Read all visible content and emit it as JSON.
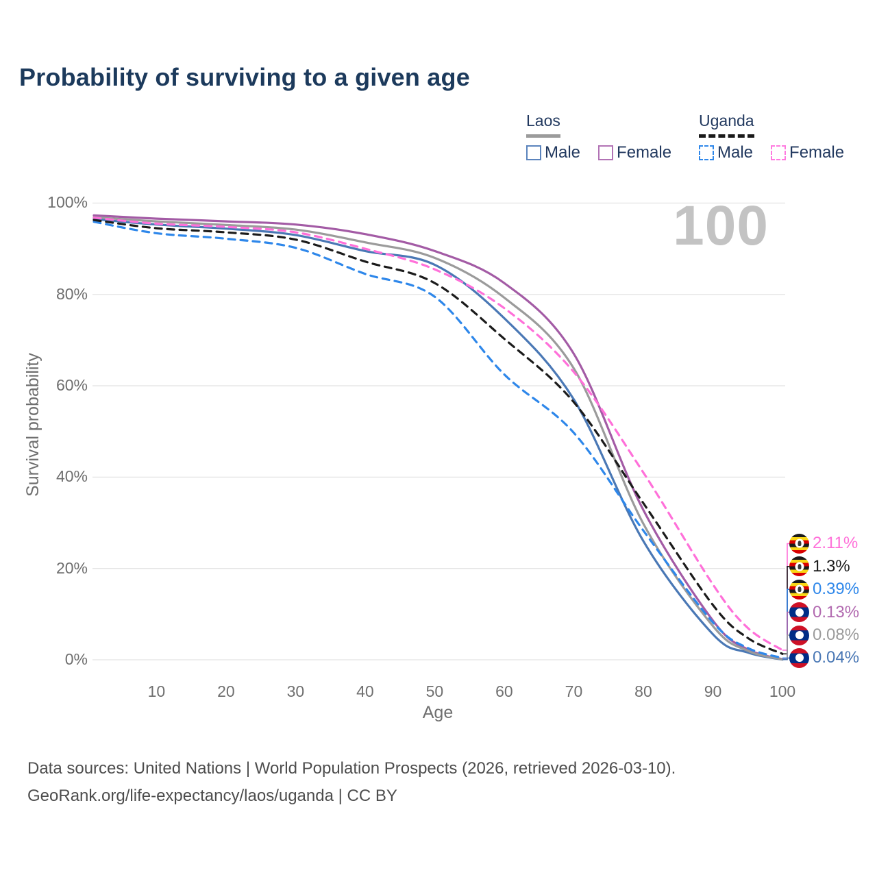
{
  "title": "Probability of surviving to a given age",
  "watermark": "100",
  "legend": {
    "groups": [
      {
        "name": "Laos",
        "line_style": "solid",
        "underline_color": "#9b9b9b",
        "items": [
          {
            "label": "Male",
            "color": "#5b84bd",
            "style": "solid"
          },
          {
            "label": "Female",
            "color": "#b273b5",
            "style": "solid"
          }
        ]
      },
      {
        "name": "Uganda",
        "line_style": "dashed",
        "underline_color": "#1a1a1a",
        "items": [
          {
            "label": "Male",
            "color": "#2e87ea",
            "style": "dashed"
          },
          {
            "label": "Female",
            "color": "#ff7be0",
            "style": "dashed"
          }
        ]
      }
    ]
  },
  "chart_data": {
    "type": "line",
    "title": "Probability of surviving to a given age",
    "xlabel": "Age",
    "ylabel": "Survival probability",
    "xlim": [
      1,
      100
    ],
    "ylim": [
      0,
      100
    ],
    "grid": "horizontal",
    "legend_position": "top-right",
    "x_ticks": [
      10,
      20,
      30,
      40,
      50,
      60,
      70,
      80,
      90,
      100
    ],
    "y_ticks": [
      "0%",
      "20%",
      "40%",
      "60%",
      "80%",
      "100%"
    ],
    "y_tick_values": [
      0,
      20,
      40,
      60,
      80,
      100
    ],
    "x": [
      1,
      10,
      20,
      30,
      40,
      50,
      60,
      70,
      80,
      90,
      95,
      100
    ],
    "series": [
      {
        "name": "Laos Male",
        "country": "Laos",
        "sex": "Male",
        "color": "#4a78b5",
        "dash": "solid",
        "values": [
          96.5,
          95.3,
          94.4,
          93.0,
          89.5,
          86.5,
          74.8,
          57.0,
          26.0,
          5.6,
          1.6,
          0.04
        ]
      },
      {
        "name": "Laos Female",
        "country": "Laos",
        "sex": "Female",
        "color": "#a35ba5",
        "dash": "solid",
        "values": [
          97.3,
          96.6,
          96.0,
          95.3,
          93.2,
          89.5,
          82.5,
          67.0,
          32.8,
          8.6,
          2.3,
          0.13
        ]
      },
      {
        "name": "Laos",
        "country": "Laos",
        "sex": "Both",
        "color": "#9b9b9b",
        "dash": "solid",
        "values": [
          96.9,
          96.0,
          95.2,
          94.2,
          91.4,
          88.0,
          79.3,
          63.8,
          29.8,
          7.4,
          2.0,
          0.08
        ]
      },
      {
        "name": "Uganda Male",
        "country": "Uganda",
        "sex": "Male",
        "color": "#2e87ea",
        "dash": "dashed",
        "values": [
          95.9,
          93.4,
          92.2,
          90.2,
          84.5,
          79.5,
          62.5,
          49.7,
          28.3,
          8.2,
          2.6,
          0.39
        ]
      },
      {
        "name": "Uganda",
        "country": "Uganda",
        "sex": "Both",
        "color": "#1b1b1b",
        "dash": "dashed",
        "values": [
          96.3,
          94.5,
          93.6,
          92.0,
          87.2,
          82.5,
          70.3,
          56.4,
          34.3,
          12.0,
          4.8,
          1.3
        ]
      },
      {
        "name": "Uganda Female",
        "country": "Uganda",
        "sex": "Female",
        "color": "#ff70d9",
        "dash": "dashed",
        "values": [
          96.8,
          95.5,
          94.8,
          93.6,
          90.0,
          85.5,
          77.0,
          63.0,
          41.0,
          16.5,
          7.0,
          2.11
        ]
      }
    ],
    "end_labels": [
      {
        "series": "Uganda Female",
        "text": "2.11%",
        "color": "#ff70d9",
        "flag": "uganda"
      },
      {
        "series": "Uganda",
        "text": "1.3%",
        "color": "#1b1b1b",
        "flag": "uganda"
      },
      {
        "series": "Uganda Male",
        "text": "0.39%",
        "color": "#2e87ea",
        "flag": "uganda"
      },
      {
        "series": "Laos Female",
        "text": "0.13%",
        "color": "#b168af",
        "flag": "laos"
      },
      {
        "series": "Laos",
        "text": "0.08%",
        "color": "#9b9b9b",
        "flag": "laos"
      },
      {
        "series": "Laos Male",
        "text": "0.04%",
        "color": "#4a78b5",
        "flag": "laos"
      }
    ]
  },
  "footer": {
    "line1": "Data sources: United Nations | World Population Prospects (2026, retrieved 2026-03-10).",
    "line2": "GeoRank.org/life-expectancy/laos/uganda | CC BY"
  }
}
